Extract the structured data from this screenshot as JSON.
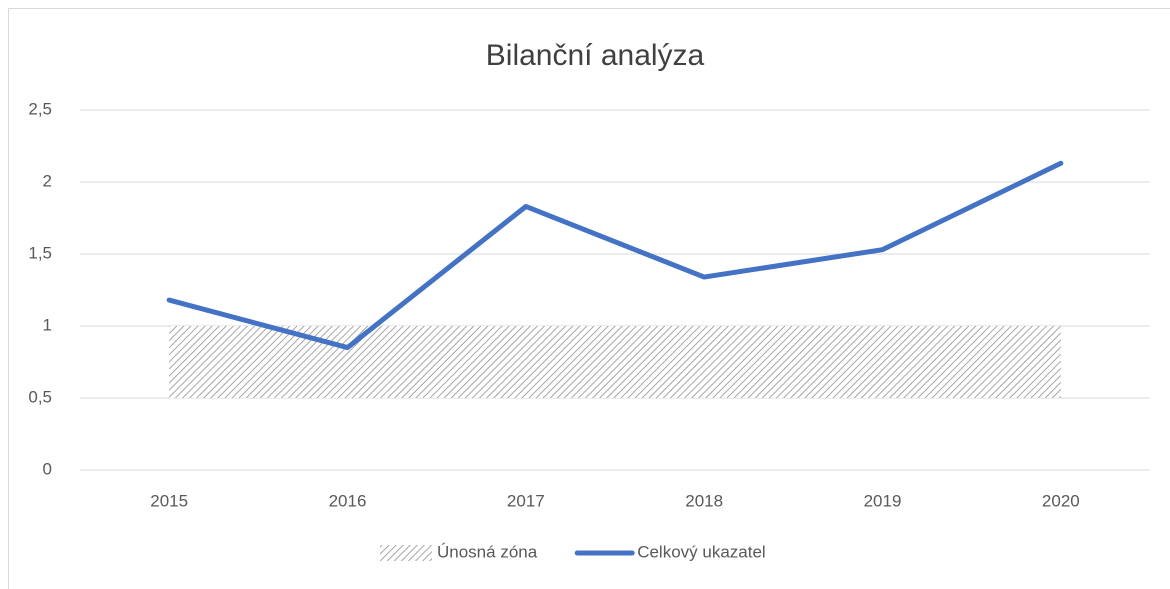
{
  "chart_data": {
    "type": "line",
    "title": "Bilanční analýza",
    "categories": [
      "2015",
      "2016",
      "2017",
      "2018",
      "2019",
      "2020"
    ],
    "series": [
      {
        "name": "Únosná zóna",
        "type": "band",
        "color": "#a6a6a6",
        "low": [
          0.5,
          0.5,
          0.5,
          0.5,
          0.5,
          0.5
        ],
        "values": [
          1,
          1,
          1,
          1,
          1,
          1
        ]
      },
      {
        "name": "Celkový ukazatel",
        "type": "line",
        "color": "#4472c4",
        "values": [
          1.18,
          0.85,
          1.83,
          1.34,
          1.53,
          2.13
        ]
      }
    ],
    "ylim": [
      0,
      2.5
    ],
    "yticks": [
      0,
      {
        "value": 0.5,
        "label": "0,5"
      },
      1,
      {
        "value": 1.5,
        "label": "1,5"
      },
      2,
      {
        "value": 2.5,
        "label": "2,5"
      }
    ],
    "grid": true,
    "legend": "bottom"
  }
}
